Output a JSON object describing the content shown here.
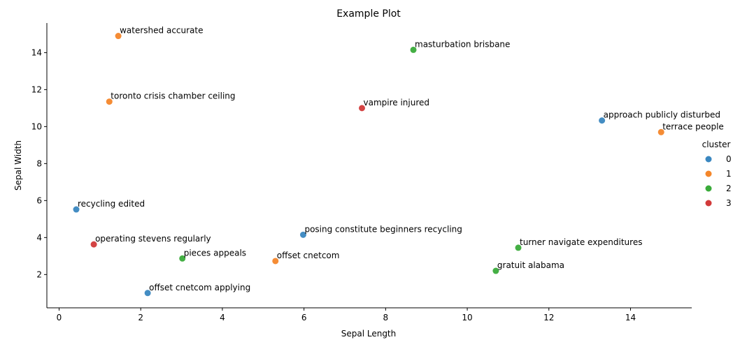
{
  "chart_data": {
    "type": "scatter",
    "title": "Example Plot",
    "xlabel": "Sepal Length",
    "ylabel": "Sepal Width",
    "xlim": [
      -0.3,
      15.5
    ],
    "ylim": [
      0.2,
      15.6
    ],
    "xticks": [
      0,
      2,
      4,
      6,
      8,
      10,
      12,
      14
    ],
    "yticks": [
      2,
      4,
      6,
      8,
      10,
      12,
      14
    ],
    "grid": false,
    "legend": {
      "title": "cluster",
      "placement": "right",
      "entries": [
        {
          "label": "0",
          "color": "#3a87c0"
        },
        {
          "label": "1",
          "color": "#f4862a"
        },
        {
          "label": "2",
          "color": "#3aab3a"
        },
        {
          "label": "3",
          "color": "#d23a3a"
        }
      ]
    },
    "points": [
      {
        "x": 0.42,
        "y": 5.52,
        "cluster": 0,
        "label": "recycling edited"
      },
      {
        "x": 2.17,
        "y": 1.0,
        "cluster": 0,
        "label": "offset cnetcom applying"
      },
      {
        "x": 5.98,
        "y": 4.15,
        "cluster": 0,
        "label": "posing constitute beginners recycling"
      },
      {
        "x": 13.3,
        "y": 10.33,
        "cluster": 0,
        "label": "approach publicly disturbed"
      },
      {
        "x": 1.45,
        "y": 14.9,
        "cluster": 1,
        "label": "watershed accurate"
      },
      {
        "x": 1.23,
        "y": 11.35,
        "cluster": 1,
        "label": "toronto crisis chamber ceiling"
      },
      {
        "x": 5.3,
        "y": 2.73,
        "cluster": 1,
        "label": "offset cnetcom"
      },
      {
        "x": 14.75,
        "y": 9.7,
        "cluster": 1,
        "label": "terrace people"
      },
      {
        "x": 8.68,
        "y": 14.15,
        "cluster": 2,
        "label": "masturbation brisbane"
      },
      {
        "x": 3.02,
        "y": 2.87,
        "cluster": 2,
        "label": "pieces appeals"
      },
      {
        "x": 10.7,
        "y": 2.2,
        "cluster": 2,
        "label": "gratuit alabama"
      },
      {
        "x": 11.25,
        "y": 3.45,
        "cluster": 2,
        "label": "turner navigate expenditures"
      },
      {
        "x": 7.42,
        "y": 11.0,
        "cluster": 3,
        "label": "vampire injured"
      },
      {
        "x": 0.85,
        "y": 3.63,
        "cluster": 3,
        "label": "operating stevens regularly"
      }
    ]
  }
}
